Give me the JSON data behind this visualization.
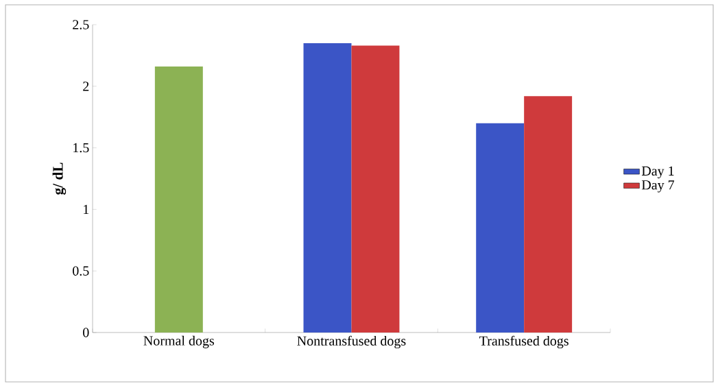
{
  "chart_data": {
    "type": "bar",
    "ylabel": "g/ dL",
    "categories": [
      "Normal dogs",
      "Nontransfused dogs",
      "Transfused dogs"
    ],
    "series": [
      {
        "color": "#8cb254",
        "values": [
          2.16,
          null,
          null
        ]
      },
      {
        "name": "Day 1",
        "color": "#3b55c6",
        "values": [
          null,
          2.35,
          1.7
        ]
      },
      {
        "name": "Day 7",
        "color": "#cf3a3c",
        "values": [
          null,
          2.33,
          1.92
        ]
      }
    ],
    "ylim": [
      0,
      2.5
    ],
    "yticks": [
      0,
      0.5,
      1,
      1.5,
      2,
      2.5
    ],
    "legend": "right"
  }
}
